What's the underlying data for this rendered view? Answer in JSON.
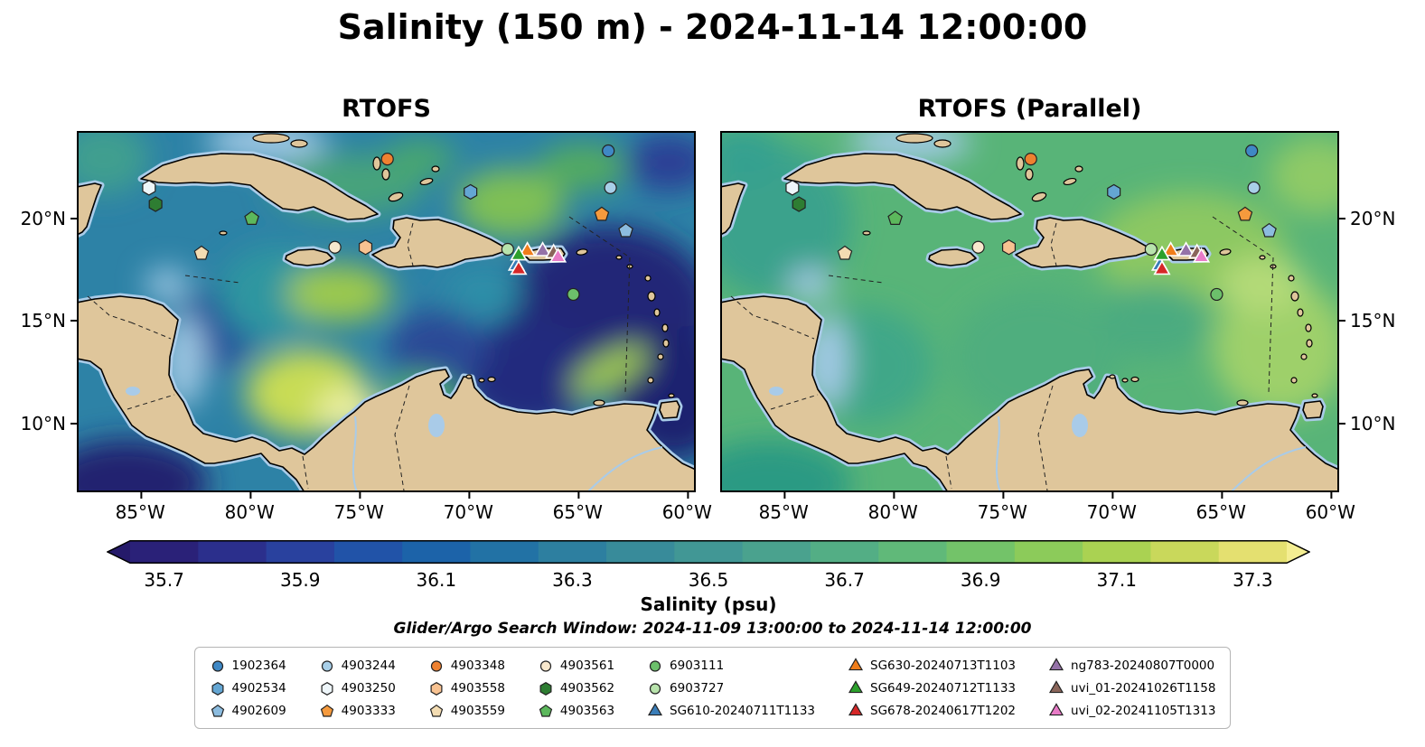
{
  "title": "Salinity (150 m) - 2024-11-14 12:00:00",
  "chart_data": {
    "type": "heatmap",
    "panels": [
      {
        "title": "RTOFS"
      },
      {
        "title": "RTOFS (Parallel)"
      }
    ],
    "extent": {
      "lon": [
        -87.9,
        -59.6
      ],
      "lat": [
        6.65,
        24.27
      ]
    },
    "x_ticks": [
      {
        "label": "85°W",
        "lon": -85
      },
      {
        "label": "80°W",
        "lon": -80
      },
      {
        "label": "75°W",
        "lon": -75
      },
      {
        "label": "70°W",
        "lon": -70
      },
      {
        "label": "65°W",
        "lon": -65
      },
      {
        "label": "60°W",
        "lon": -60
      }
    ],
    "y_ticks": [
      {
        "label": "20°N",
        "lat": 20
      },
      {
        "label": "15°N",
        "lat": 15
      },
      {
        "label": "10°N",
        "lat": 10
      }
    ],
    "colorbar": {
      "label": "Salinity (psu)",
      "range": [
        35.65,
        37.35
      ],
      "ticks": [
        {
          "label": "35.7",
          "value": 35.7
        },
        {
          "label": "35.9",
          "value": 35.9
        },
        {
          "label": "36.1",
          "value": 36.1
        },
        {
          "label": "36.3",
          "value": 36.3
        },
        {
          "label": "36.5",
          "value": 36.5
        },
        {
          "label": "36.7",
          "value": 36.7
        },
        {
          "label": "36.9",
          "value": 36.9
        },
        {
          "label": "37.1",
          "value": 37.1
        },
        {
          "label": "37.3",
          "value": 37.3
        }
      ],
      "under_color": "#251a6a",
      "over_color": "#f4ee92",
      "segment_colors": [
        "#2a2178",
        "#2b2f8c",
        "#29419e",
        "#2153a8",
        "#1c63a9",
        "#2272a5",
        "#2d7fa0",
        "#388b9a",
        "#419795",
        "#4aa28e",
        "#53ae85",
        "#60b979",
        "#73c369",
        "#8ccb5a",
        "#aad252",
        "#c9d85b",
        "#e4e070"
      ]
    },
    "search_window": "Glider/Argo Search Window: 2024-11-09 13:00:00 to 2024-11-14 12:00:00",
    "legend": [
      {
        "label": "1902364",
        "shape": "circle",
        "color": "#3f88c5"
      },
      {
        "label": "4902534",
        "shape": "hexagon",
        "color": "#64a6d3"
      },
      {
        "label": "4902609",
        "shape": "pentagon",
        "color": "#8cbcdf"
      },
      {
        "label": "4903244",
        "shape": "circle",
        "color": "#a8cfe8"
      },
      {
        "label": "4903250",
        "shape": "hexagon",
        "color": "#eef6fa"
      },
      {
        "label": "4903333",
        "shape": "pentagon",
        "color": "#f59a3d"
      },
      {
        "label": "4903348",
        "shape": "circle",
        "color": "#ee8130"
      },
      {
        "label": "4903558",
        "shape": "hexagon",
        "color": "#f8c291"
      },
      {
        "label": "4903559",
        "shape": "pentagon",
        "color": "#f3dcb2"
      },
      {
        "label": "4903561",
        "shape": "circle",
        "color": "#f8e8cd"
      },
      {
        "label": "4903562",
        "shape": "hexagon",
        "color": "#2e7d32"
      },
      {
        "label": "4903563",
        "shape": "pentagon",
        "color": "#5cb85c"
      },
      {
        "label": "6903111",
        "shape": "circle",
        "color": "#6cc06b"
      },
      {
        "label": "6903727",
        "shape": "circle",
        "color": "#b8e3ac"
      },
      {
        "label": "SG610-20240711T1133",
        "shape": "triangle",
        "color": "#3a7db8"
      },
      {
        "label": "SG630-20240713T1103",
        "shape": "triangle",
        "color": "#f07d1a"
      },
      {
        "label": "SG649-20240712T1133",
        "shape": "triangle",
        "color": "#2ca02c"
      },
      {
        "label": "SG678-20240617T1202",
        "shape": "triangle",
        "color": "#d62728"
      },
      {
        "label": "ng783-20240807T0000",
        "shape": "triangle",
        "color": "#9572a8"
      },
      {
        "label": "uvi_01-20241026T1158",
        "shape": "triangle",
        "color": "#8a655a"
      },
      {
        "label": "uvi_02-20241105T1313",
        "shape": "triangle",
        "color": "#e87bc7"
      }
    ],
    "markers": [
      {
        "id": "1902364",
        "lon": -63.6,
        "lat": 23.3
      },
      {
        "id": "4902534",
        "lon": -69.9,
        "lat": 21.3
      },
      {
        "id": "4902609",
        "lon": -62.8,
        "lat": 19.4
      },
      {
        "id": "4903244",
        "lon": -63.5,
        "lat": 21.5
      },
      {
        "id": "4903250",
        "lon": -84.6,
        "lat": 21.5
      },
      {
        "id": "4903333",
        "lon": -63.9,
        "lat": 20.2
      },
      {
        "id": "4903348",
        "lon": -73.7,
        "lat": 22.9
      },
      {
        "id": "4903558",
        "lon": -74.7,
        "lat": 18.6
      },
      {
        "id": "4903559",
        "lon": -82.2,
        "lat": 18.3
      },
      {
        "id": "4903561",
        "lon": -76.1,
        "lat": 18.6
      },
      {
        "id": "4903562",
        "lon": -84.3,
        "lat": 20.7
      },
      {
        "id": "4903563",
        "lon": -79.9,
        "lat": 20.0
      },
      {
        "id": "6903111",
        "lon": -65.2,
        "lat": 16.3
      },
      {
        "id": "6903727",
        "lon": -68.2,
        "lat": 18.5
      },
      {
        "id": "SG610-20240711T1133",
        "lon": -67.8,
        "lat": 17.7
      },
      {
        "id": "SG630-20240713T1103",
        "lon": -67.3,
        "lat": 18.4
      },
      {
        "id": "SG649-20240712T1133",
        "lon": -67.7,
        "lat": 18.2
      },
      {
        "id": "SG678-20240617T1202",
        "lon": -67.7,
        "lat": 17.5
      },
      {
        "id": "ng783-20240807T0000",
        "lon": -66.6,
        "lat": 18.4
      },
      {
        "id": "uvi_01-20241026T1158",
        "lon": -66.1,
        "lat": 18.3
      },
      {
        "id": "uvi_02-20241105T1313",
        "lon": -65.9,
        "lat": 18.1
      }
    ]
  }
}
